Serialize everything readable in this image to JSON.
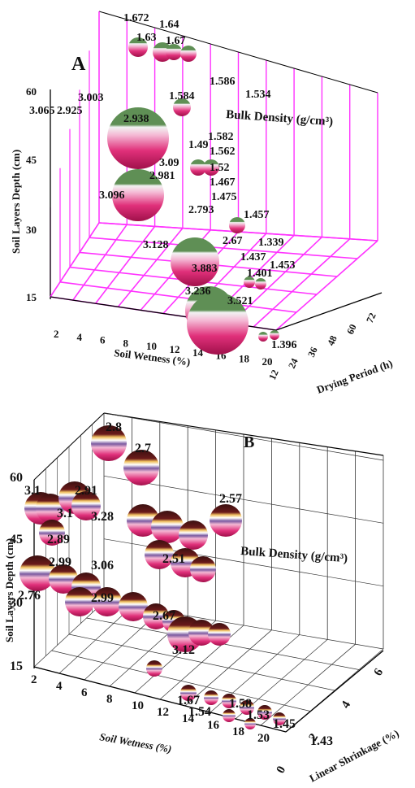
{
  "colors": {
    "panel_a_grid": "#ff33ff",
    "panel_a_sphere_top": "#5f8f55",
    "panel_a_sphere_body": "#e0307a",
    "panel_b_sphere_top": "#3a1010",
    "panel_b_sphere_ring": "#f0c060",
    "panel_b_sphere_body": "#e0307a",
    "panel_b_grid": "#333333"
  },
  "chart_data": [
    {
      "type": "scatter",
      "subtype": "3d-bubble",
      "panel_label": "A",
      "title": "Bulk Density (g/cm³)",
      "xlabel": "Soil Wetness (%)",
      "ylabel": "Soil Layers Depth (cm)",
      "zlabel": "Drying Period (h)",
      "xticks": [
        "2",
        "4",
        "6",
        "8",
        "10",
        "12",
        "14",
        "16",
        "18",
        "20"
      ],
      "yticks": [
        "15",
        "30",
        "45",
        "60"
      ],
      "zticks": [
        "12",
        "24",
        "36",
        "48",
        "60",
        "72"
      ],
      "grid": true,
      "data_labels": [
        "1.672",
        "1.64",
        "1.63",
        "1.67",
        "1.586",
        "1.534",
        "1.584",
        "3.003",
        "3.065",
        "2.925",
        "2.938",
        "1.582",
        "1.49",
        "1.562",
        "1.52",
        "3.09",
        "2.981",
        "3.096",
        "1.467",
        "1.475",
        "1.457",
        "2.793",
        "2.67",
        "1.339",
        "3.128",
        "1.437",
        "1.401",
        "1.453",
        "3.883",
        "3.236",
        "3.521",
        "1.396"
      ],
      "bubbles": [
        {
          "label": "1.672",
          "value": 1.672
        },
        {
          "label": "1.64",
          "value": 1.64
        },
        {
          "label": "1.63",
          "value": 1.63
        },
        {
          "label": "1.67",
          "value": 1.67
        },
        {
          "label": "1.586",
          "value": 1.586
        },
        {
          "label": "1.534",
          "value": 1.534
        },
        {
          "label": "1.584",
          "value": 1.584
        },
        {
          "label": "3.003",
          "value": 3.003
        },
        {
          "label": "3.065",
          "value": 3.065
        },
        {
          "label": "2.925",
          "value": 2.925
        },
        {
          "label": "2.938",
          "value": 2.938
        },
        {
          "label": "1.582",
          "value": 1.582
        },
        {
          "label": "1.49",
          "value": 1.49
        },
        {
          "label": "1.562",
          "value": 1.562
        },
        {
          "label": "1.52",
          "value": 1.52
        },
        {
          "label": "3.09",
          "value": 3.09
        },
        {
          "label": "2.981",
          "value": 2.981
        },
        {
          "label": "3.096",
          "value": 3.096
        },
        {
          "label": "1.467",
          "value": 1.467
        },
        {
          "label": "1.475",
          "value": 1.475
        },
        {
          "label": "1.457",
          "value": 1.457
        },
        {
          "label": "2.793",
          "value": 2.793
        },
        {
          "label": "2.67",
          "value": 2.67
        },
        {
          "label": "1.339",
          "value": 1.339
        },
        {
          "label": "3.128",
          "value": 3.128
        },
        {
          "label": "1.437",
          "value": 1.437
        },
        {
          "label": "1.401",
          "value": 1.401
        },
        {
          "label": "1.453",
          "value": 1.453
        },
        {
          "label": "3.883",
          "value": 3.883
        },
        {
          "label": "3.236",
          "value": 3.236
        },
        {
          "label": "3.521",
          "value": 3.521
        },
        {
          "label": "1.396",
          "value": 1.396
        }
      ]
    },
    {
      "type": "scatter",
      "subtype": "3d-bubble",
      "panel_label": "B",
      "title": "Bulk Density (g/cm³)",
      "xlabel": "Soil Wetness (%)",
      "ylabel": "Soil Layers Depth (cm)",
      "zlabel": "Linear Shrinkage (%)",
      "xticks": [
        "2",
        "4",
        "6",
        "8",
        "10",
        "12",
        "14",
        "16",
        "18",
        "20"
      ],
      "yticks": [
        "15",
        "30",
        "45",
        "60"
      ],
      "zticks": [
        "0",
        "2",
        "4",
        "6"
      ],
      "grid": true,
      "data_labels": [
        "2.8",
        "2.7",
        "3.1",
        "2.91",
        "3.1",
        "3.28",
        "2.57",
        "2.89",
        "2.99",
        "3.06",
        "2.51",
        "2.76",
        "2.99",
        "2.67",
        "3.12",
        "1.67",
        "1.54",
        "1.58",
        "1.53",
        "1.45",
        "1.43"
      ],
      "bubbles": [
        {
          "label": "2.8",
          "value": 2.8
        },
        {
          "label": "2.7",
          "value": 2.7
        },
        {
          "label": "3.1",
          "value": 3.1
        },
        {
          "label": "2.91",
          "value": 2.91
        },
        {
          "label": "3.1",
          "value": 3.1
        },
        {
          "label": "3.28",
          "value": 3.28
        },
        {
          "label": "2.57",
          "value": 2.57
        },
        {
          "label": "2.89",
          "value": 2.89
        },
        {
          "label": "2.99",
          "value": 2.99
        },
        {
          "label": "3.06",
          "value": 3.06
        },
        {
          "label": "2.51",
          "value": 2.51
        },
        {
          "label": "2.76",
          "value": 2.76
        },
        {
          "label": "2.99",
          "value": 2.99
        },
        {
          "label": "2.67",
          "value": 2.67
        },
        {
          "label": "3.12",
          "value": 3.12
        },
        {
          "label": "1.67",
          "value": 1.67
        },
        {
          "label": "1.54",
          "value": 1.54
        },
        {
          "label": "1.58",
          "value": 1.58
        },
        {
          "label": "1.53",
          "value": 1.53
        },
        {
          "label": "1.45",
          "value": 1.45
        },
        {
          "label": "1.43",
          "value": 1.43
        }
      ]
    }
  ]
}
